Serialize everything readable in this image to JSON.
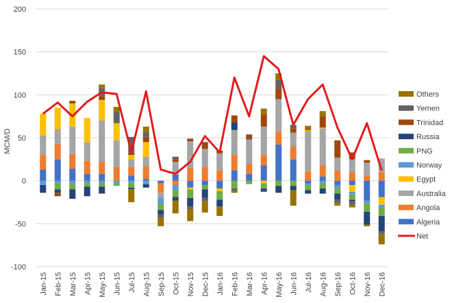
{
  "chart_data": {
    "type": "bar",
    "title": "",
    "xlabel": "",
    "ylabel": "MCM/D",
    "ylim": [
      -100,
      200
    ],
    "yticks": [
      -100,
      -50,
      0,
      50,
      100,
      150,
      200
    ],
    "grid": true,
    "legend_position": "right",
    "categories": [
      "Jan-15",
      "Feb-15",
      "Mar-15",
      "Apr-15",
      "May-15",
      "Jun-15",
      "Jul-15",
      "Aug-15",
      "Sep-15",
      "Oct-15",
      "Nov-15",
      "Dec-15",
      "Jan-16",
      "Feb-16",
      "Mar-16",
      "Apr-16",
      "May-16",
      "Jun-16",
      "Jul-16",
      "Aug-16",
      "Sep-16",
      "Oct-16",
      "Nov-16",
      "Dec-16"
    ],
    "series": [
      {
        "name": "Algeria",
        "color": "#4472C4",
        "values": [
          13,
          25,
          14,
          8,
          8,
          0,
          6,
          2,
          -3,
          7,
          -8,
          -5,
          -9,
          12,
          8,
          18,
          42,
          25,
          -3,
          5,
          -5,
          -5,
          -23,
          -19
        ]
      },
      {
        "name": "Angola",
        "color": "#ED7D31",
        "values": [
          17,
          18,
          17,
          15,
          14,
          16,
          10,
          15,
          -11,
          -5,
          15,
          16,
          12,
          18,
          12,
          12,
          15,
          15,
          11,
          13,
          12,
          10,
          6,
          10
        ]
      },
      {
        "name": "Australia",
        "color": "#A5A5A5",
        "values": [
          23,
          17,
          32,
          22,
          48,
          31,
          9,
          11,
          -6,
          15,
          31,
          21,
          20,
          29,
          28,
          33,
          38,
          16,
          47,
          43,
          15,
          15,
          15,
          16
        ]
      },
      {
        "name": "Egypt",
        "color": "#FFC000",
        "values": [
          25,
          25,
          27,
          28,
          24,
          20,
          5,
          17,
          0,
          0,
          -2,
          0,
          -3,
          0,
          0,
          -3,
          0,
          0,
          1,
          1,
          0,
          -8,
          0,
          -9
        ]
      },
      {
        "name": "Norway",
        "color": "#5B9BD5",
        "values": [
          -5,
          -3,
          -4,
          -3,
          -3,
          -3,
          -3,
          -4,
          -7,
          -6,
          0,
          0,
          0,
          0,
          0,
          0,
          0,
          0,
          -2,
          -3,
          -4,
          -3,
          -3,
          -3
        ]
      },
      {
        "name": "PNG",
        "color": "#70AD47",
        "values": [
          0,
          -7,
          -6,
          -4,
          -4,
          -3,
          -5,
          0,
          -7,
          -8,
          -10,
          -5,
          -10,
          -9,
          -4,
          -6,
          -6,
          -6,
          -6,
          -6,
          -6,
          -6,
          -10,
          -10
        ]
      },
      {
        "name": "Russia",
        "color": "#264478",
        "values": [
          -9,
          -4,
          -11,
          -11,
          -8,
          0,
          -2,
          -4,
          -5,
          -4,
          -10,
          -10,
          -8,
          9,
          0,
          -3,
          -8,
          -5,
          -4,
          -6,
          -7,
          -2,
          -15,
          -18
        ]
      },
      {
        "name": "Trinidad",
        "color": "#9E480E",
        "values": [
          0,
          -4,
          3,
          0,
          4,
          0,
          3,
          6,
          0,
          3,
          3,
          8,
          3,
          8,
          4,
          14,
          12,
          5,
          2,
          13,
          20,
          8,
          3,
          0
        ]
      },
      {
        "name": "Yemen",
        "color": "#636363",
        "values": [
          0,
          0,
          0,
          0,
          10,
          13,
          18,
          6,
          -4,
          3,
          -3,
          -4,
          0,
          -3,
          2,
          -1,
          10,
          4,
          0,
          0,
          -4,
          -4,
          0,
          -3
        ]
      },
      {
        "name": "Others",
        "color": "#997300",
        "values": [
          0,
          0,
          0,
          0,
          4,
          6,
          -15,
          6,
          -10,
          -15,
          -14,
          -13,
          -11,
          -2,
          0,
          7,
          8,
          -18,
          3,
          6,
          -3,
          -3,
          -2,
          -12
        ]
      }
    ],
    "net": {
      "name": "Net",
      "color": "#E31B1B",
      "values": [
        78,
        91,
        75,
        92,
        103,
        101,
        33,
        104,
        13,
        8,
        22,
        52,
        33,
        120,
        75,
        145,
        130,
        65,
        95,
        112,
        62,
        25,
        67,
        12
      ]
    }
  }
}
